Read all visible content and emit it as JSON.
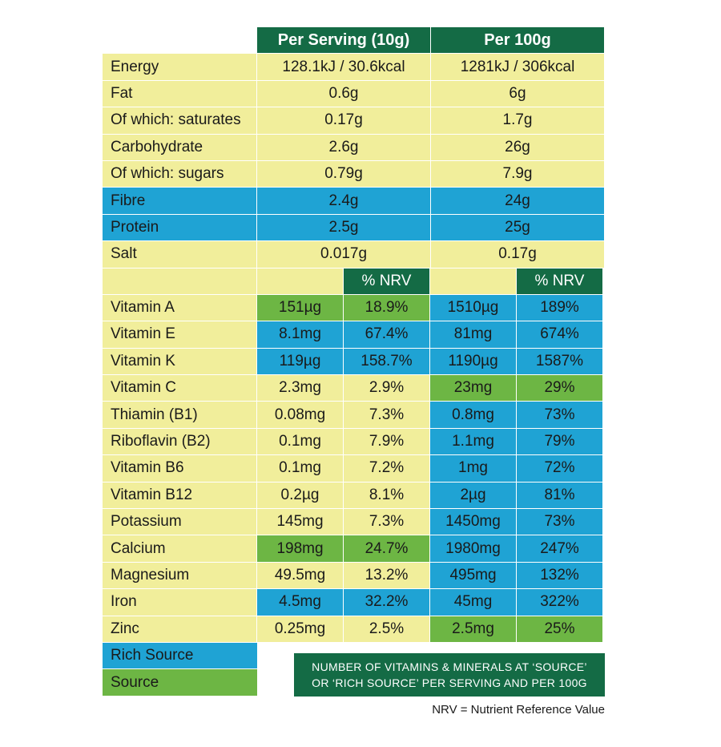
{
  "headers": {
    "per_serving": "Per Serving (10g)",
    "per_100g": "Per 100g",
    "nrv": "% NRV"
  },
  "nutrients": [
    {
      "label": "Energy",
      "serving": "128.1kJ / 30.6kcal",
      "per100": "1281kJ / 306kcal",
      "color": "yellow"
    },
    {
      "label": "Fat",
      "serving": "0.6g",
      "per100": "6g",
      "color": "yellow"
    },
    {
      "label": "Of which: saturates",
      "serving": "0.17g",
      "per100": "1.7g",
      "color": "yellow"
    },
    {
      "label": "Carbohydrate",
      "serving": "2.6g",
      "per100": "26g",
      "color": "yellow"
    },
    {
      "label": "Of which: sugars",
      "serving": "0.79g",
      "per100": "7.9g",
      "color": "yellow"
    },
    {
      "label": "Fibre",
      "serving": "2.4g",
      "per100": "24g",
      "color": "blue"
    },
    {
      "label": "Protein",
      "serving": "2.5g",
      "per100": "25g",
      "color": "blue"
    },
    {
      "label": "Salt",
      "serving": "0.017g",
      "per100": "0.17g",
      "color": "yellow"
    }
  ],
  "vitamins": [
    {
      "label": "Vitamin A",
      "s_val": "151µg",
      "s_nrv": "18.9%",
      "s_color": "green",
      "h_val": "1510µg",
      "h_nrv": "189%",
      "h_color": "blue"
    },
    {
      "label": "Vitamin E",
      "s_val": "8.1mg",
      "s_nrv": "67.4%",
      "s_color": "blue",
      "h_val": "81mg",
      "h_nrv": "674%",
      "h_color": "blue"
    },
    {
      "label": "Vitamin K",
      "s_val": "119µg",
      "s_nrv": "158.7%",
      "s_color": "blue",
      "h_val": "1190µg",
      "h_nrv": "1587%",
      "h_color": "blue"
    },
    {
      "label": "Vitamin C",
      "s_val": "2.3mg",
      "s_nrv": "2.9%",
      "s_color": "yellow",
      "h_val": "23mg",
      "h_nrv": "29%",
      "h_color": "green"
    },
    {
      "label": "Thiamin (B1)",
      "s_val": "0.08mg",
      "s_nrv": "7.3%",
      "s_color": "yellow",
      "h_val": "0.8mg",
      "h_nrv": "73%",
      "h_color": "blue"
    },
    {
      "label": "Riboflavin (B2)",
      "s_val": "0.1mg",
      "s_nrv": "7.9%",
      "s_color": "yellow",
      "h_val": "1.1mg",
      "h_nrv": "79%",
      "h_color": "blue"
    },
    {
      "label": "Vitamin B6",
      "s_val": "0.1mg",
      "s_nrv": "7.2%",
      "s_color": "yellow",
      "h_val": "1mg",
      "h_nrv": "72%",
      "h_color": "blue"
    },
    {
      "label": "Vitamin B12",
      "s_val": "0.2µg",
      "s_nrv": "8.1%",
      "s_color": "yellow",
      "h_val": "2µg",
      "h_nrv": "81%",
      "h_color": "blue"
    },
    {
      "label": "Potassium",
      "s_val": "145mg",
      "s_nrv": "7.3%",
      "s_color": "yellow",
      "h_val": "1450mg",
      "h_nrv": "73%",
      "h_color": "blue"
    },
    {
      "label": "Calcium",
      "s_val": "198mg",
      "s_nrv": "24.7%",
      "s_color": "green",
      "h_val": "1980mg",
      "h_nrv": "247%",
      "h_color": "blue"
    },
    {
      "label": "Magnesium",
      "s_val": "49.5mg",
      "s_nrv": "13.2%",
      "s_color": "yellow",
      "h_val": "495mg",
      "h_nrv": "132%",
      "h_color": "blue"
    },
    {
      "label": "Iron",
      "s_val": "4.5mg",
      "s_nrv": "32.2%",
      "s_color": "blue",
      "h_val": "45mg",
      "h_nrv": "322%",
      "h_color": "blue"
    },
    {
      "label": "Zinc",
      "s_val": "0.25mg",
      "s_nrv": "2.5%",
      "s_color": "yellow",
      "h_val": "2.5mg",
      "h_nrv": "25%",
      "h_color": "green"
    }
  ],
  "legend": {
    "rich_source": "Rich Source",
    "source": "Source"
  },
  "note": {
    "line1": "NUMBER OF VITAMINS & MINERALS AT ‘SOURCE’",
    "line2": "OR ‘RICH SOURCE’ PER SERVING AND PER 100G"
  },
  "footnote": "NRV = Nutrient Reference Value",
  "colors": {
    "yellow": "#f1ee9b",
    "blue": "#1fa3d4",
    "green": "#6db644",
    "dark_green": "#146b45"
  }
}
